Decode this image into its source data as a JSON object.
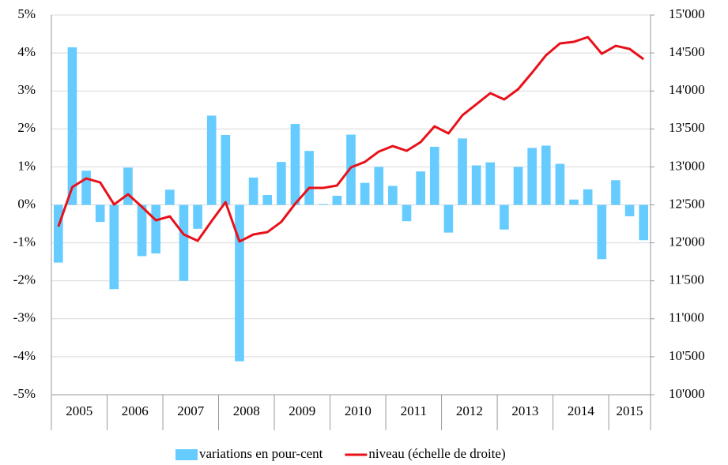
{
  "chart_data": {
    "type": "bar",
    "categories": [
      "2005",
      null,
      null,
      null,
      "2006",
      null,
      null,
      null,
      "2007",
      null,
      null,
      null,
      "2008",
      null,
      null,
      null,
      "2009",
      null,
      null,
      null,
      "2010",
      null,
      null,
      null,
      "2011",
      null,
      null,
      null,
      "2012",
      null,
      null,
      null,
      "2013",
      null,
      null,
      null,
      "2014",
      null,
      null,
      null,
      "2015",
      null,
      null
    ],
    "series": [
      {
        "name": "variations en pour-cent",
        "type": "bar",
        "color": "#66ccff",
        "axis": "y",
        "values": [
          -1.52,
          4.15,
          0.9,
          -0.45,
          -2.22,
          0.98,
          -1.35,
          -1.28,
          0.4,
          -2.0,
          -0.63,
          2.35,
          1.84,
          -4.12,
          0.72,
          0.26,
          1.13,
          2.13,
          1.42,
          0.02,
          0.24,
          1.85,
          0.58,
          1.0,
          0.5,
          -0.43,
          0.88,
          1.53,
          -0.73,
          1.75,
          1.04,
          1.12,
          -0.65,
          1.0,
          1.5,
          1.56,
          1.08,
          0.14,
          0.41,
          -1.43,
          0.65,
          -0.3,
          -0.93
        ]
      },
      {
        "name": "niveau (échelle de droite)",
        "type": "line",
        "color": "#e8111a",
        "axis": "y2",
        "values": [
          12214,
          12734,
          12848,
          12796,
          12505,
          12640,
          12474,
          12297,
          12349,
          12110,
          12027,
          12287,
          12536,
          12017,
          12110,
          12141,
          12276,
          12516,
          12723,
          12723,
          12755,
          12994,
          13066,
          13202,
          13274,
          13212,
          13326,
          13534,
          13441,
          13680,
          13825,
          13971,
          13888,
          14023,
          14241,
          14470,
          14626,
          14647,
          14709,
          14490,
          14594,
          14553,
          14418
        ]
      }
    ],
    "ylim": [
      -5,
      5
    ],
    "yticks": [
      {
        "value": -5,
        "label": "-5%"
      },
      {
        "value": -4,
        "label": "-4%"
      },
      {
        "value": -3,
        "label": "-3%"
      },
      {
        "value": -2,
        "label": "-2%"
      },
      {
        "value": -1,
        "label": "-1%"
      },
      {
        "value": 0,
        "label": "0%"
      },
      {
        "value": 1,
        "label": "1%"
      },
      {
        "value": 2,
        "label": "2%"
      },
      {
        "value": 3,
        "label": "3%"
      },
      {
        "value": 4,
        "label": "4%"
      },
      {
        "value": 5,
        "label": "5%"
      }
    ],
    "y2lim": [
      10000,
      15000
    ],
    "y2ticks": [
      {
        "value": 10000,
        "label": "10'000"
      },
      {
        "value": 10500,
        "label": "10'500"
      },
      {
        "value": 11000,
        "label": "11'000"
      },
      {
        "value": 11500,
        "label": "11'500"
      },
      {
        "value": 12000,
        "label": "12'000"
      },
      {
        "value": 12500,
        "label": "12'500"
      },
      {
        "value": 13000,
        "label": "13'000"
      },
      {
        "value": 13500,
        "label": "13'500"
      },
      {
        "value": 14000,
        "label": "14'000"
      },
      {
        "value": 14500,
        "label": "14'500"
      },
      {
        "value": 15000,
        "label": "15'000"
      }
    ],
    "grid": true,
    "legend": "bottom"
  }
}
